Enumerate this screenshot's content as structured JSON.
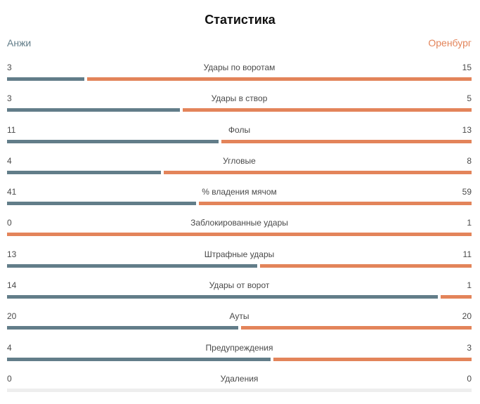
{
  "title": "Статистика",
  "teams": {
    "home": "Анжи",
    "away": "Оренбург"
  },
  "colors": {
    "home": "#627d89",
    "away": "#e3845a",
    "empty": "#eeeeee"
  },
  "stats": [
    {
      "label": "Удары по воротам",
      "home": 3,
      "away": 15
    },
    {
      "label": "Удары в створ",
      "home": 3,
      "away": 5
    },
    {
      "label": "Фолы",
      "home": 11,
      "away": 13
    },
    {
      "label": "Угловые",
      "home": 4,
      "away": 8
    },
    {
      "label": "% владения мячом",
      "home": 41,
      "away": 59
    },
    {
      "label": "Заблокированные удары",
      "home": 0,
      "away": 1
    },
    {
      "label": "Штрафные удары",
      "home": 13,
      "away": 11
    },
    {
      "label": "Удары от ворот",
      "home": 14,
      "away": 1
    },
    {
      "label": "Ауты",
      "home": 20,
      "away": 20
    },
    {
      "label": "Предупреждения",
      "home": 4,
      "away": 3
    },
    {
      "label": "Удаления",
      "home": 0,
      "away": 0
    }
  ]
}
